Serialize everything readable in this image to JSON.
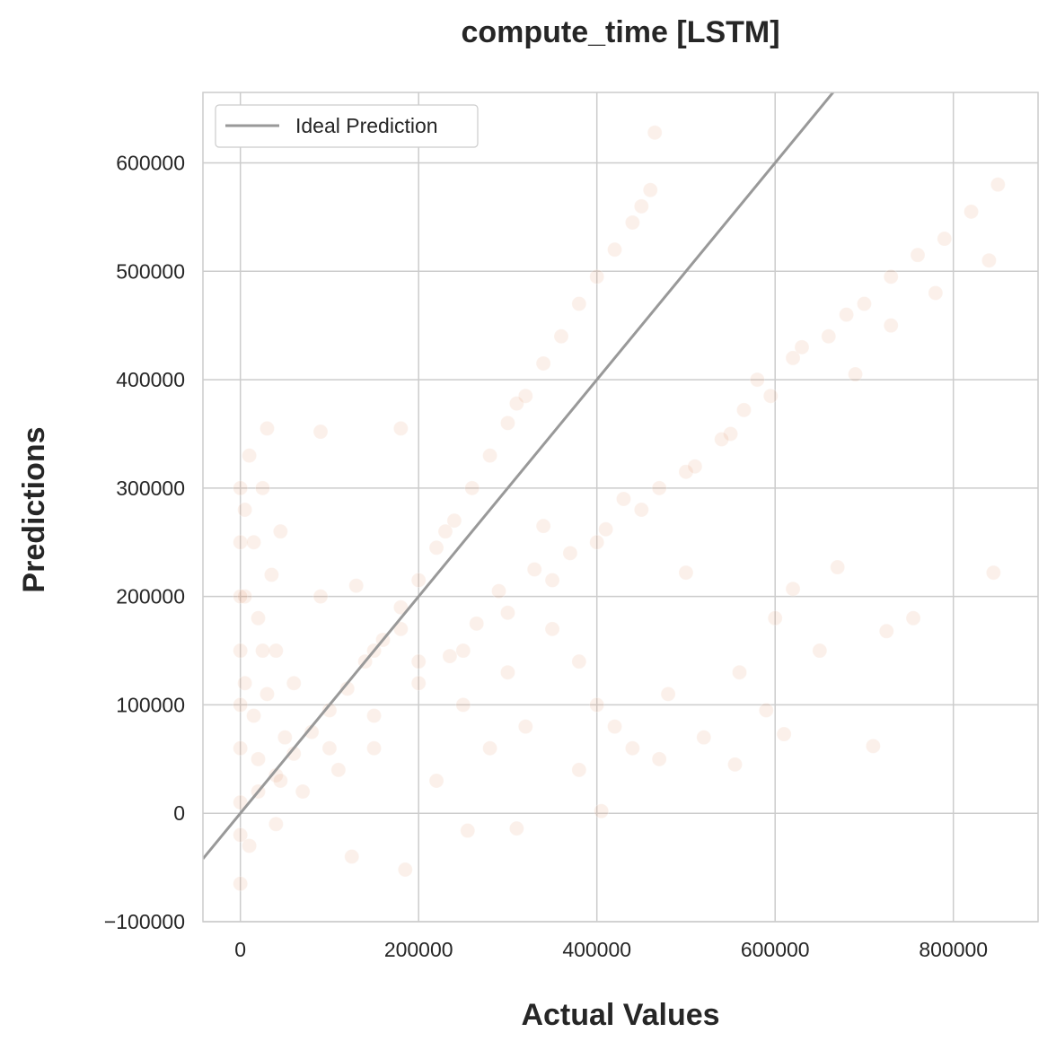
{
  "chart_data": {
    "type": "scatter",
    "title": "compute_time [LSTM]",
    "xlabel": "Actual Values",
    "ylabel": "Predictions",
    "xlim": [
      -42000,
      895000
    ],
    "ylim": [
      -100000,
      665000
    ],
    "xticks": [
      0,
      200000,
      400000,
      600000,
      800000
    ],
    "xtick_labels": [
      "0",
      "200000",
      "400000",
      "600000",
      "800000"
    ],
    "yticks": [
      -100000,
      0,
      100000,
      200000,
      300000,
      400000,
      500000,
      600000
    ],
    "ytick_labels": [
      "−100000",
      "0",
      "100000",
      "200000",
      "300000",
      "400000",
      "500000",
      "600000"
    ],
    "grid": true,
    "legend_position": "top-left",
    "colors": {
      "points": "#dd8452",
      "ideal_line": "#999999",
      "grid": "#cccccc",
      "spine": "#cccccc"
    },
    "series": [
      {
        "name": "",
        "kind": "scatter",
        "alpha": 0.12,
        "points": [
          [
            0,
            10000
          ],
          [
            0,
            60000
          ],
          [
            0,
            150000
          ],
          [
            0,
            250000
          ],
          [
            0,
            -20000
          ],
          [
            0,
            -65000
          ],
          [
            5000,
            120000
          ],
          [
            5000,
            280000
          ],
          [
            10000,
            330000
          ],
          [
            15000,
            90000
          ],
          [
            20000,
            180000
          ],
          [
            25000,
            300000
          ],
          [
            30000,
            355000
          ],
          [
            35000,
            220000
          ],
          [
            40000,
            150000
          ],
          [
            45000,
            260000
          ],
          [
            20000,
            20000
          ],
          [
            40000,
            35000
          ],
          [
            60000,
            55000
          ],
          [
            80000,
            75000
          ],
          [
            100000,
            95000
          ],
          [
            120000,
            115000
          ],
          [
            140000,
            140000
          ],
          [
            160000,
            160000
          ],
          [
            180000,
            190000
          ],
          [
            200000,
            215000
          ],
          [
            220000,
            245000
          ],
          [
            240000,
            270000
          ],
          [
            260000,
            300000
          ],
          [
            280000,
            330000
          ],
          [
            300000,
            360000
          ],
          [
            320000,
            385000
          ],
          [
            340000,
            415000
          ],
          [
            360000,
            440000
          ],
          [
            380000,
            470000
          ],
          [
            400000,
            495000
          ],
          [
            420000,
            520000
          ],
          [
            440000,
            545000
          ],
          [
            460000,
            575000
          ],
          [
            465000,
            628000
          ],
          [
            450000,
            560000
          ],
          [
            310000,
            378000
          ],
          [
            230000,
            260000
          ],
          [
            150000,
            150000
          ],
          [
            100000,
            60000
          ],
          [
            150000,
            90000
          ],
          [
            200000,
            120000
          ],
          [
            250000,
            150000
          ],
          [
            300000,
            185000
          ],
          [
            350000,
            215000
          ],
          [
            400000,
            250000
          ],
          [
            450000,
            280000
          ],
          [
            500000,
            315000
          ],
          [
            550000,
            350000
          ],
          [
            580000,
            400000
          ],
          [
            620000,
            420000
          ],
          [
            660000,
            440000
          ],
          [
            680000,
            460000
          ],
          [
            700000,
            470000
          ],
          [
            730000,
            495000
          ],
          [
            760000,
            515000
          ],
          [
            790000,
            530000
          ],
          [
            820000,
            555000
          ],
          [
            850000,
            580000
          ],
          [
            840000,
            510000
          ],
          [
            845000,
            222000
          ],
          [
            710000,
            62000
          ],
          [
            755000,
            180000
          ],
          [
            670000,
            227000
          ],
          [
            620000,
            207000
          ],
          [
            590000,
            95000
          ],
          [
            560000,
            130000
          ],
          [
            520000,
            70000
          ],
          [
            480000,
            110000
          ],
          [
            440000,
            60000
          ],
          [
            420000,
            80000
          ],
          [
            400000,
            100000
          ],
          [
            380000,
            140000
          ],
          [
            350000,
            170000
          ],
          [
            320000,
            80000
          ],
          [
            300000,
            130000
          ],
          [
            280000,
            60000
          ],
          [
            250000,
            100000
          ],
          [
            220000,
            30000
          ],
          [
            200000,
            140000
          ],
          [
            180000,
            170000
          ],
          [
            150000,
            60000
          ],
          [
            130000,
            210000
          ],
          [
            110000,
            40000
          ],
          [
            90000,
            200000
          ],
          [
            70000,
            20000
          ],
          [
            60000,
            120000
          ],
          [
            50000,
            70000
          ],
          [
            40000,
            -10000
          ],
          [
            30000,
            110000
          ],
          [
            20000,
            50000
          ],
          [
            10000,
            -30000
          ],
          [
            5000,
            200000
          ],
          [
            0,
            100000
          ],
          [
            0,
            200000
          ],
          [
            0,
            300000
          ],
          [
            15000,
            250000
          ],
          [
            25000,
            150000
          ],
          [
            45000,
            30000
          ],
          [
            125000,
            -40000
          ],
          [
            185000,
            -52000
          ],
          [
            255000,
            -16000
          ],
          [
            310000,
            -14000
          ],
          [
            405000,
            2000
          ],
          [
            180000,
            355000
          ],
          [
            90000,
            352000
          ],
          [
            340000,
            265000
          ],
          [
            500000,
            222000
          ],
          [
            600000,
            180000
          ],
          [
            650000,
            150000
          ],
          [
            725000,
            168000
          ],
          [
            610000,
            73000
          ],
          [
            555000,
            45000
          ],
          [
            470000,
            50000
          ],
          [
            380000,
            40000
          ],
          [
            235000,
            145000
          ],
          [
            265000,
            175000
          ],
          [
            290000,
            205000
          ],
          [
            330000,
            225000
          ],
          [
            370000,
            240000
          ],
          [
            410000,
            262000
          ],
          [
            430000,
            290000
          ],
          [
            470000,
            300000
          ],
          [
            510000,
            320000
          ],
          [
            540000,
            345000
          ],
          [
            565000,
            372000
          ],
          [
            595000,
            385000
          ],
          [
            630000,
            430000
          ],
          [
            690000,
            405000
          ],
          [
            730000,
            450000
          ],
          [
            780000,
            480000
          ]
        ]
      },
      {
        "name": "Ideal Prediction",
        "kind": "line",
        "x": [
          -42000,
          895000
        ],
        "y": [
          -42000,
          895000
        ]
      }
    ]
  }
}
